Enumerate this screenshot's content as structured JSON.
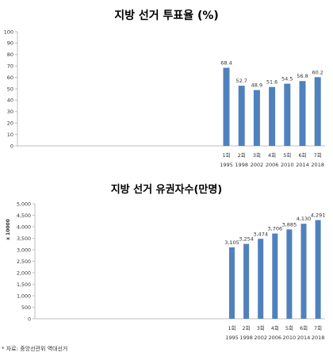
{
  "colors": {
    "bar": "#4F81BD",
    "axis": "#BFBFBF",
    "text": "#333333"
  },
  "chart_data": [
    {
      "type": "bar",
      "title": "지방 선거 투표율 (%)",
      "xlabel": "",
      "ylabel": "",
      "categories": [
        "1회",
        "2회",
        "3회",
        "4회",
        "5회",
        "6회",
        "7회"
      ],
      "years": [
        "1995",
        "1998",
        "2002",
        "2006",
        "2010",
        "2014",
        "2018"
      ],
      "values": [
        68.4,
        52.7,
        48.9,
        51.6,
        54.5,
        56.8,
        60.2
      ],
      "value_labels": [
        "68.4",
        "52.7",
        "48.9",
        "51.6",
        "54.5",
        "56.8",
        "60.2"
      ],
      "ylim": [
        0,
        100
      ],
      "yticks": [
        "0",
        "10",
        "20",
        "30",
        "40",
        "50",
        "60",
        "70",
        "80",
        "90",
        "100"
      ],
      "grid": false,
      "legend": "none"
    },
    {
      "type": "bar",
      "title": "지방 선거 유권자수(만명)",
      "xlabel": "",
      "ylabel": "x 10000",
      "categories": [
        "1회",
        "2회",
        "3회",
        "4회",
        "5회",
        "6회",
        "7회"
      ],
      "years": [
        "1995",
        "1998",
        "2002",
        "2006",
        "2010",
        "2014",
        "2018"
      ],
      "values": [
        3105,
        3254,
        3474,
        3706,
        3885,
        4130,
        4291
      ],
      "value_labels": [
        "3,105",
        "3,254",
        "3,474",
        "3,706",
        "3,885",
        "4,130",
        "4,291"
      ],
      "ylim": [
        0,
        5000
      ],
      "yticks": [
        "0",
        "500",
        "1,000",
        "1,500",
        "2,000",
        "2,500",
        "3,000",
        "3,500",
        "4,000",
        "4,500",
        "5,000"
      ],
      "grid": false,
      "legend": "none"
    }
  ],
  "source_note": "* 자료: 중앙선관위 역대선거"
}
